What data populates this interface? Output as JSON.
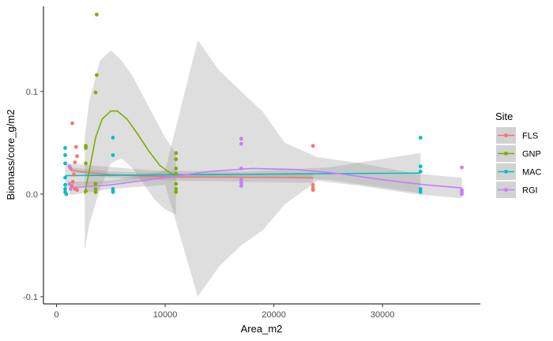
{
  "chart_data": {
    "type": "scatter",
    "title": "",
    "xlabel": "Area_m2",
    "ylabel": "Biomass/core_g/m2",
    "xlim": [
      -1200,
      39000
    ],
    "ylim": [
      -0.107,
      0.183
    ],
    "x_ticks": [
      0,
      10000,
      20000,
      30000
    ],
    "x_tick_labels": [
      "0",
      "10000",
      "20000",
      "30000"
    ],
    "y_ticks": [
      -0.1,
      0.0,
      0.1
    ],
    "y_tick_labels": [
      "-0.1",
      "0.0",
      "0.1"
    ],
    "grid": false,
    "legend": {
      "title": "Site",
      "position": "right"
    },
    "series": [
      {
        "name": "FLS",
        "color": "#F8766D",
        "points": [
          [
            1450,
            0.069
          ],
          [
            1800,
            0.046
          ],
          [
            1900,
            0.037
          ],
          [
            1700,
            0.031
          ],
          [
            1300,
            0.025
          ],
          [
            1600,
            0.019
          ],
          [
            1500,
            0.012
          ],
          [
            1400,
            0.008
          ],
          [
            1700,
            0.005
          ],
          [
            1900,
            0.004
          ],
          [
            23600,
            0.047
          ],
          [
            23600,
            0.009
          ],
          [
            23600,
            0.006
          ],
          [
            23600,
            0.004
          ]
        ],
        "trend": [
          [
            1300,
            0.0235
          ],
          [
            2500,
            0.0215
          ],
          [
            5000,
            0.019
          ],
          [
            8000,
            0.0175
          ],
          [
            11000,
            0.0168
          ],
          [
            15000,
            0.0165
          ],
          [
            20000,
            0.0162
          ],
          [
            23600,
            0.016
          ]
        ],
        "band": [
          [
            1300,
            0.026,
            0.021
          ],
          [
            5000,
            0.022,
            0.016
          ],
          [
            11000,
            0.02,
            0.013
          ],
          [
            17000,
            0.02,
            0.012
          ],
          [
            23600,
            0.021,
            0.011
          ]
        ]
      },
      {
        "name": "GNP",
        "color": "#7CAE00",
        "points": [
          [
            3700,
            0.175
          ],
          [
            3700,
            0.116
          ],
          [
            3600,
            0.099
          ],
          [
            2700,
            0.047
          ],
          [
            2700,
            0.045
          ],
          [
            2700,
            0.03
          ],
          [
            3600,
            0.01
          ],
          [
            3600,
            0.005
          ],
          [
            2700,
            0.003
          ],
          [
            3600,
            0.002
          ],
          [
            5200,
            0.003
          ],
          [
            11000,
            0.04
          ],
          [
            11000,
            0.034
          ],
          [
            11000,
            0.025
          ],
          [
            11000,
            0.02
          ],
          [
            11000,
            0.01
          ],
          [
            11000,
            0.005
          ],
          [
            11000,
            0.002
          ]
        ],
        "trend": [
          [
            2600,
            0.0
          ],
          [
            3000,
            0.022
          ],
          [
            3600,
            0.055
          ],
          [
            4200,
            0.073
          ],
          [
            5000,
            0.081
          ],
          [
            5600,
            0.081
          ],
          [
            6500,
            0.073
          ],
          [
            7500,
            0.058
          ],
          [
            8500,
            0.042
          ],
          [
            9500,
            0.028
          ],
          [
            10400,
            0.021
          ],
          [
            11000,
            0.018
          ]
        ],
        "band": [
          [
            2600,
            0.055,
            -0.055
          ],
          [
            3000,
            0.09,
            -0.03
          ],
          [
            4000,
            0.13,
            0.005
          ],
          [
            5000,
            0.14,
            0.03
          ],
          [
            6000,
            0.13,
            0.035
          ],
          [
            7000,
            0.115,
            0.025
          ],
          [
            8000,
            0.095,
            0.01
          ],
          [
            9000,
            0.075,
            -0.005
          ],
          [
            10000,
            0.055,
            -0.015
          ],
          [
            11000,
            0.04,
            -0.02
          ]
        ]
      },
      {
        "name": "MAC",
        "color": "#00BFC4",
        "points": [
          [
            800,
            0.045
          ],
          [
            800,
            0.038
          ],
          [
            800,
            0.03
          ],
          [
            800,
            0.016
          ],
          [
            800,
            0.009
          ],
          [
            800,
            0.005
          ],
          [
            800,
            0.002
          ],
          [
            900,
            0.0
          ],
          [
            5200,
            0.055
          ],
          [
            5200,
            0.038
          ],
          [
            5200,
            0.005
          ],
          [
            5200,
            0.002
          ],
          [
            33500,
            0.055
          ],
          [
            33500,
            0.027
          ],
          [
            33500,
            0.022
          ],
          [
            33500,
            0.005
          ],
          [
            33500,
            0.002
          ]
        ],
        "trend": [
          [
            800,
            0.018
          ],
          [
            10000,
            0.0188
          ],
          [
            20000,
            0.0195
          ],
          [
            33500,
            0.0205
          ]
        ],
        "band": [
          [
            800,
            0.03,
            0.006
          ],
          [
            9000,
            0.023,
            0.015
          ],
          [
            17000,
            0.022,
            0.017
          ],
          [
            25000,
            0.026,
            0.014
          ],
          [
            33500,
            0.04,
            0.001
          ]
        ]
      },
      {
        "name": "RGI",
        "color": "#C77CFF",
        "points": [
          [
            1200,
            0.027
          ],
          [
            1200,
            0.01
          ],
          [
            1300,
            0.005
          ],
          [
            17000,
            0.054
          ],
          [
            17000,
            0.049
          ],
          [
            17000,
            0.025
          ],
          [
            17000,
            0.014
          ],
          [
            17000,
            0.011
          ],
          [
            17000,
            0.008
          ],
          [
            37300,
            0.026
          ],
          [
            37300,
            0.004
          ],
          [
            37300,
            0.002
          ],
          [
            37300,
            0.0
          ]
        ],
        "trend": [
          [
            1200,
            0.006
          ],
          [
            5000,
            0.009
          ],
          [
            10000,
            0.016
          ],
          [
            14000,
            0.022
          ],
          [
            18000,
            0.025
          ],
          [
            22000,
            0.024
          ],
          [
            26000,
            0.02
          ],
          [
            30000,
            0.014
          ],
          [
            34000,
            0.009
          ],
          [
            37300,
            0.006
          ]
        ],
        "band": [
          [
            1200,
            0.012,
            -0.001
          ],
          [
            5000,
            0.013,
            0.005
          ],
          [
            10000,
            0.023,
            0.009
          ],
          [
            13000,
            0.15,
            -0.1
          ],
          [
            15000,
            0.12,
            -0.07
          ],
          [
            17000,
            0.1,
            -0.05
          ],
          [
            19000,
            0.08,
            -0.035
          ],
          [
            21000,
            0.05,
            -0.01
          ],
          [
            24000,
            0.036,
            0.013
          ],
          [
            28000,
            0.03,
            0.008
          ],
          [
            33000,
            0.02,
            0.0
          ],
          [
            37300,
            0.016,
            -0.004
          ]
        ]
      }
    ]
  }
}
